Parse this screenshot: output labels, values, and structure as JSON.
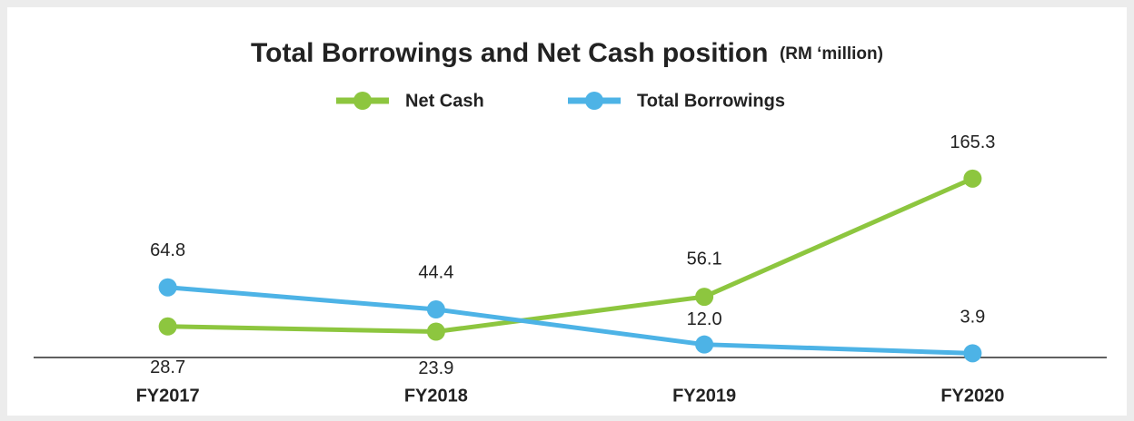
{
  "chart_data": {
    "type": "line",
    "title": "Total Borrowings and Net Cash position",
    "subtitle": "(RM ‘million)",
    "categories": [
      "FY2017",
      "FY2018",
      "FY2019",
      "FY2020"
    ],
    "series": [
      {
        "name": "Net Cash",
        "color": "#8dc63f",
        "values": [
          28.7,
          23.9,
          56.1,
          165.3
        ],
        "value_labels": [
          "28.7",
          "23.9",
          "56.1",
          "165.3"
        ]
      },
      {
        "name": "Total Borrowings",
        "color": "#4db3e6",
        "values": [
          64.8,
          44.4,
          12.0,
          3.9
        ],
        "value_labels": [
          "64.8",
          "44.4",
          "12.0",
          "3.9"
        ]
      }
    ],
    "ylim": [
      0,
      180
    ]
  }
}
